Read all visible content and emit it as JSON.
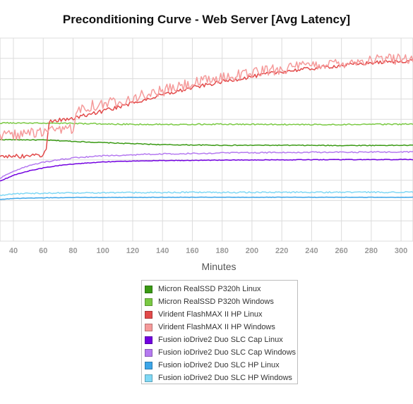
{
  "chart_data": {
    "type": "line",
    "title": "Preconditioning Curve - Web Server [Avg Latency]",
    "xlabel": "Minutes",
    "ylabel": "",
    "xlim": [
      31,
      308
    ],
    "ylim": [
      0,
      10
    ],
    "x_ticks": [
      40,
      60,
      80,
      100,
      120,
      140,
      160,
      180,
      200,
      220,
      240,
      260,
      280,
      300
    ],
    "grid": true,
    "legend_position": "bottom-center",
    "series": [
      {
        "name": "Micron RealSSD P320h Linux",
        "color": "#3a9a14",
        "points": [
          [
            31,
            5.0
          ],
          [
            60,
            4.98
          ],
          [
            100,
            4.85
          ],
          [
            140,
            4.75
          ],
          [
            180,
            4.72
          ],
          [
            220,
            4.72
          ],
          [
            260,
            4.71
          ],
          [
            308,
            4.72
          ]
        ]
      },
      {
        "name": "Micron RealSSD P320h Windows",
        "color": "#7ac943",
        "points": [
          [
            31,
            5.82
          ],
          [
            80,
            5.8
          ],
          [
            120,
            5.75
          ],
          [
            180,
            5.76
          ],
          [
            240,
            5.74
          ],
          [
            308,
            5.76
          ]
        ]
      },
      {
        "name": "Virident FlashMAX II HP Linux",
        "color": "#e24a4a",
        "points": [
          [
            31,
            4.2
          ],
          [
            45,
            4.18
          ],
          [
            60,
            4.22
          ],
          [
            62,
            4.5
          ],
          [
            64,
            5.9
          ],
          [
            80,
            6.05
          ],
          [
            100,
            6.4
          ],
          [
            120,
            6.8
          ],
          [
            140,
            7.2
          ],
          [
            160,
            7.55
          ],
          [
            180,
            7.85
          ],
          [
            200,
            8.1
          ],
          [
            220,
            8.35
          ],
          [
            240,
            8.5
          ],
          [
            260,
            8.65
          ],
          [
            280,
            8.78
          ],
          [
            300,
            8.86
          ],
          [
            308,
            8.9
          ]
        ]
      },
      {
        "name": "Virident FlashMAX II HP Windows",
        "color": "#f59a9a",
        "points": [
          [
            31,
            5.2
          ],
          [
            50,
            5.3
          ],
          [
            70,
            5.4
          ],
          [
            80,
            5.6
          ],
          [
            84,
            6.6
          ],
          [
            100,
            6.75
          ],
          [
            120,
            7.05
          ],
          [
            140,
            7.4
          ],
          [
            160,
            7.75
          ],
          [
            180,
            8.05
          ],
          [
            200,
            8.3
          ],
          [
            220,
            8.5
          ],
          [
            240,
            8.65
          ],
          [
            260,
            8.8
          ],
          [
            280,
            8.92
          ],
          [
            300,
            9.0
          ],
          [
            308,
            9.05
          ]
        ]
      },
      {
        "name": "Fusion ioDrive2 Duo SLC Cap Linux",
        "color": "#7200e0",
        "points": [
          [
            31,
            2.95
          ],
          [
            40,
            3.25
          ],
          [
            50,
            3.45
          ],
          [
            60,
            3.6
          ],
          [
            70,
            3.72
          ],
          [
            80,
            3.8
          ],
          [
            100,
            3.9
          ],
          [
            130,
            3.96
          ],
          [
            160,
            3.98
          ],
          [
            200,
            4.0
          ],
          [
            250,
            4.01
          ],
          [
            308,
            4.02
          ]
        ]
      },
      {
        "name": "Fusion ioDrive2 Duo SLC Cap Windows",
        "color": "#b57af0",
        "points": [
          [
            31,
            3.1
          ],
          [
            40,
            3.45
          ],
          [
            50,
            3.7
          ],
          [
            60,
            3.88
          ],
          [
            70,
            4.0
          ],
          [
            80,
            4.1
          ],
          [
            100,
            4.2
          ],
          [
            130,
            4.28
          ],
          [
            160,
            4.32
          ],
          [
            200,
            4.36
          ],
          [
            250,
            4.38
          ],
          [
            308,
            4.39
          ]
        ]
      },
      {
        "name": "Fusion ioDrive2 Duo SLC HP Linux",
        "color": "#3da6e8",
        "points": [
          [
            31,
            2.05
          ],
          [
            40,
            2.1
          ],
          [
            50,
            2.12
          ],
          [
            80,
            2.15
          ],
          [
            150,
            2.16
          ],
          [
            308,
            2.16
          ]
        ]
      },
      {
        "name": "Fusion ioDrive2 Duo SLC HP Windows",
        "color": "#7fd8f5",
        "points": [
          [
            31,
            2.25
          ],
          [
            40,
            2.32
          ],
          [
            50,
            2.35
          ],
          [
            80,
            2.38
          ],
          [
            150,
            2.4
          ],
          [
            308,
            2.41
          ]
        ]
      }
    ]
  }
}
